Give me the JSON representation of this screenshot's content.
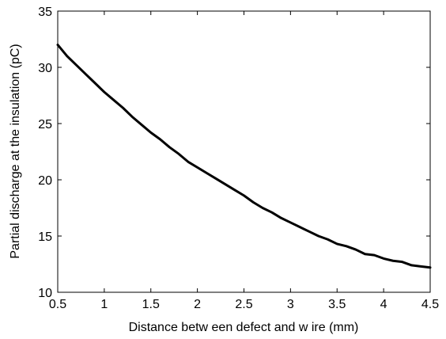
{
  "chart_data": {
    "type": "line",
    "title": "",
    "xlabel": "Distance betw een defect and w ire (mm)",
    "ylabel": "Partial discharge at the insulation (pC)",
    "xlim": [
      0.5,
      4.5
    ],
    "ylim": [
      10,
      35
    ],
    "xticks": [
      "0.5",
      "1",
      "1.5",
      "2",
      "2.5",
      "3",
      "3.5",
      "4",
      "4.5"
    ],
    "yticks": [
      "10",
      "15",
      "20",
      "25",
      "30",
      "35"
    ],
    "grid": false,
    "legend": "none",
    "series": [
      {
        "color": "#000000",
        "x": [
          0.5,
          0.6,
          0.7,
          0.8,
          0.9,
          1.0,
          1.1,
          1.2,
          1.3,
          1.4,
          1.5,
          1.6,
          1.7,
          1.8,
          1.9,
          2.0,
          2.1,
          2.2,
          2.3,
          2.4,
          2.5,
          2.6,
          2.7,
          2.8,
          2.9,
          3.0,
          3.1,
          3.2,
          3.3,
          3.4,
          3.5,
          3.6,
          3.7,
          3.8,
          3.9,
          4.0,
          4.1,
          4.2,
          4.3,
          4.4,
          4.5
        ],
        "y": [
          32.0,
          31.0,
          30.2,
          29.4,
          28.6,
          27.8,
          27.1,
          26.4,
          25.6,
          24.9,
          24.2,
          23.6,
          22.9,
          22.3,
          21.6,
          21.1,
          20.6,
          20.1,
          19.6,
          19.1,
          18.6,
          18.0,
          17.5,
          17.1,
          16.6,
          16.2,
          15.8,
          15.4,
          15.0,
          14.7,
          14.3,
          14.1,
          13.8,
          13.4,
          13.3,
          13.0,
          12.8,
          12.7,
          12.4,
          12.3,
          12.2
        ]
      }
    ]
  }
}
